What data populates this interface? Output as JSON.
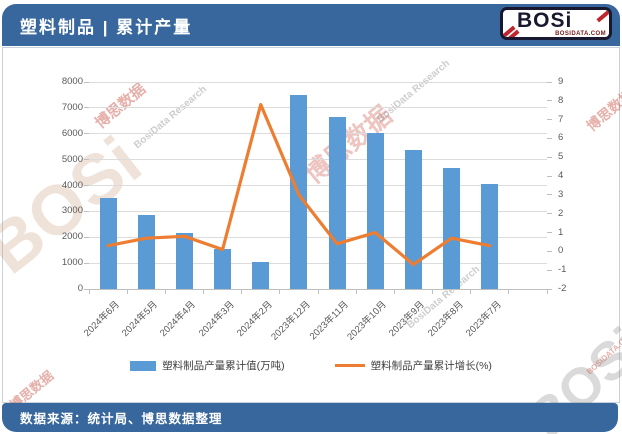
{
  "header": {
    "title": "塑料制品 | 累计产量",
    "logo": {
      "text": "BOSi",
      "domain": "BOSIDATA.COM"
    }
  },
  "footer": {
    "source": "数据来源：统计局、博思数据整理"
  },
  "watermark": {
    "brand_cn": "博思数据",
    "brand_en": "BosiData Research",
    "logo": "BOSi",
    "domain": "BOSIDATA.COM"
  },
  "colors": {
    "header_blue": "#37679D",
    "bar_blue": "#5B9BD5",
    "line_orange": "#ED7D31"
  },
  "chart_data": {
    "type": "bar",
    "title": "塑料制品 | 累计产量",
    "categories": [
      "2024年6月",
      "2024年5月",
      "2024年4月",
      "2024年3月",
      "2024年2月",
      "2023年12月",
      "2023年11月",
      "2023年10月",
      "2023年9月",
      "2023年8月",
      "2023年7月"
    ],
    "series": [
      {
        "name": "塑料制品产量累计值(万吨)",
        "type": "bar",
        "axis": "left",
        "color": "#5B9BD5",
        "values": [
          3520,
          2870,
          2170,
          1530,
          1050,
          7480,
          6640,
          6040,
          5380,
          4670,
          4060
        ]
      },
      {
        "name": "塑料制品产量累计增长(%)",
        "type": "line",
        "axis": "right",
        "color": "#ED7D31",
        "values": [
          0.3,
          0.7,
          0.8,
          0.1,
          7.8,
          3.0,
          0.4,
          1.0,
          -0.7,
          0.7,
          0.3
        ]
      }
    ],
    "xlabel": "",
    "ylabel_left": "万吨",
    "ylabel_right": "%",
    "left_axis": {
      "min": 0,
      "max": 8000,
      "step": 1000
    },
    "right_axis": {
      "min": -2,
      "max": 9,
      "step": 1
    },
    "grid": true,
    "legend_position": "bottom",
    "layout": {
      "extra_right_slots": 1,
      "x_labels_rotated_deg": -45
    }
  }
}
